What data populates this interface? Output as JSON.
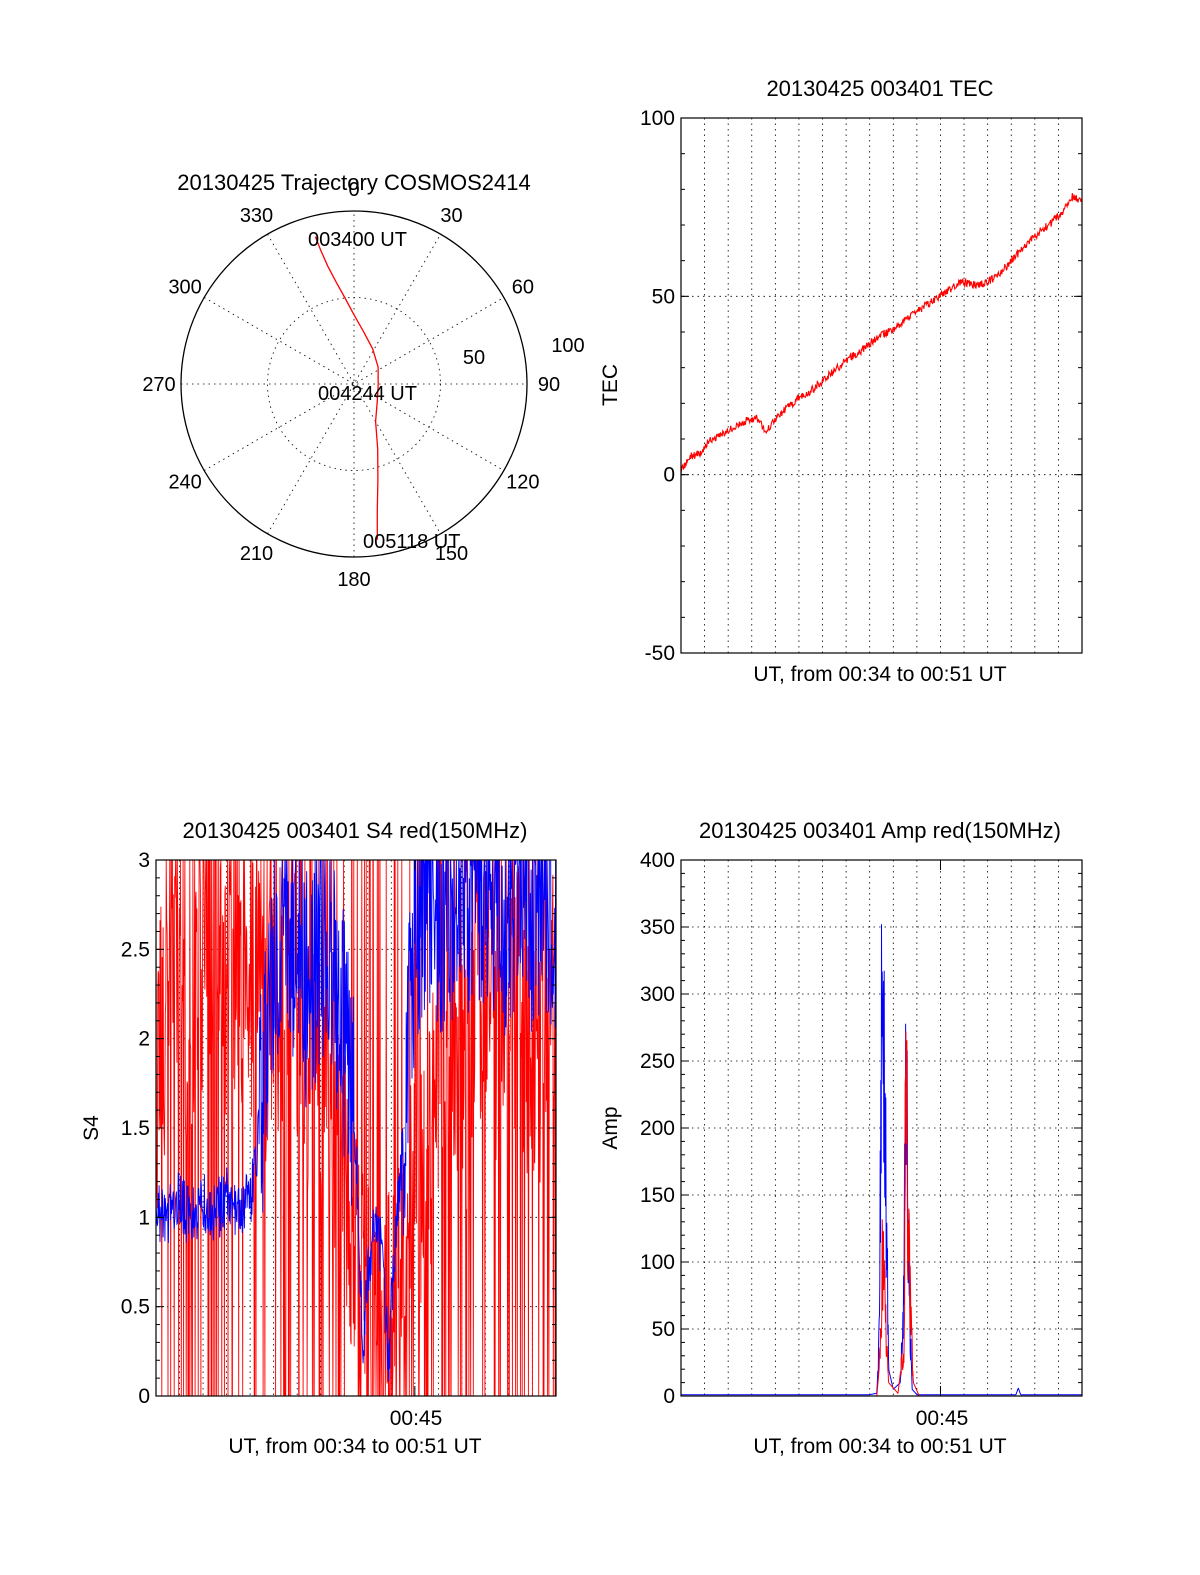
{
  "colors": {
    "red": "#ff0000",
    "blue": "#0000ff",
    "axis": "#000000"
  },
  "chart_data": [
    {
      "id": "trajectory",
      "type": "scatter",
      "subtype": "polar",
      "title": "20130425 Trajectory COSMOS2414",
      "azimuth_labels": [
        "0",
        "30",
        "60",
        "90",
        "120",
        "150",
        "180",
        "210",
        "240",
        "270",
        "300",
        "330"
      ],
      "radial_labels": [
        "50",
        "100"
      ],
      "radial_range": [
        0,
        100
      ],
      "annotations": [
        "003400 UT",
        "004244 UT",
        "005118 UT"
      ],
      "series": [
        {
          "color": "#ff0000",
          "note": "ground track as (azimuth deg, radius 0-100 = 90-elevation)",
          "points": [
            [
              -14.7,
              88
            ],
            [
              -14.0,
              80
            ],
            [
              -12.6,
              70
            ],
            [
              -10.0,
              60
            ],
            [
              -6.0,
              50
            ],
            [
              0,
              40
            ],
            [
              10,
              31
            ],
            [
              28,
              23
            ],
            [
              55,
              17
            ],
            [
              92,
              14
            ],
            [
              128,
              17
            ],
            [
              150,
              25
            ],
            [
              160,
              40
            ],
            [
              166,
              57
            ],
            [
              169.5,
              74
            ],
            [
              171.5,
              91
            ]
          ]
        }
      ]
    },
    {
      "id": "tec",
      "type": "line",
      "title": "20130425 003401 TEC",
      "xlabel": "UT, from 00:34 to 00:51 UT",
      "ylabel": "TEC",
      "ylim": [
        -50,
        100
      ],
      "yticks": [
        "100",
        "50",
        "0",
        "-50"
      ],
      "xlim_minutes": [
        34,
        51
      ],
      "grid": true,
      "series": [
        {
          "color": "#ff0000",
          "x": [
            34.0,
            34.4,
            34.8,
            35.3,
            35.7,
            36.2,
            36.7,
            37.2,
            37.6,
            38.2,
            38.9,
            39.6,
            40.3,
            41.0,
            41.7,
            42.4,
            43.1,
            43.8,
            44.5,
            45.2,
            45.9,
            46.6,
            47.3,
            48.0,
            48.7,
            49.4,
            50.1,
            50.6,
            51.0
          ],
          "y": [
            1,
            5,
            6,
            10,
            11,
            13,
            15,
            16,
            12,
            17,
            21,
            24,
            28,
            32,
            35,
            39,
            41,
            45,
            48,
            51,
            54,
            53,
            55,
            60,
            65,
            69,
            73,
            78,
            77
          ]
        }
      ]
    },
    {
      "id": "s4",
      "type": "line",
      "title": "20130425 003401 S4 red(150MHz)",
      "xlabel": "UT, from 00:34 to 00:51 UT",
      "ylabel": "S4",
      "ylim": [
        0,
        3
      ],
      "yticks": [
        "3",
        "2.5",
        "2",
        "1.5",
        "1",
        "0.5",
        "0"
      ],
      "xlim_minutes": [
        34,
        51
      ],
      "xtick_label": "00:45",
      "xtick_value": 45,
      "grid": true,
      "series": [
        {
          "color": "#ff0000",
          "x": [
            34.0,
            34.7,
            35.4,
            36.1,
            36.8,
            37.5,
            38.2,
            38.9,
            39.6,
            40.3,
            41.0,
            41.8,
            42.5,
            43.1,
            43.8,
            44.4,
            45.1,
            45.8,
            46.5,
            47.2,
            47.9,
            48.6,
            49.3,
            50.0,
            50.7,
            51.0
          ],
          "y": [
            1.8,
            2.4,
            2.1,
            2.6,
            2.3,
            2.5,
            2.2,
            2.0,
            2.4,
            1.9,
            1.7,
            1.3,
            0.8,
            0.3,
            0.4,
            0.6,
            1.2,
            1.6,
            2.1,
            1.8,
            2.4,
            2.0,
            2.3,
            1.7,
            2.2,
            2.4
          ]
        },
        {
          "color": "#0000ff",
          "x": [
            34.0,
            34.5,
            35.0,
            35.5,
            36.0,
            36.5,
            37.0,
            37.5,
            38.0,
            38.5,
            39.0,
            39.5,
            40.0,
            40.5,
            41.0,
            41.5,
            42.0,
            42.5,
            42.8,
            43.0,
            43.3,
            43.6,
            43.9,
            44.1,
            44.4,
            44.7,
            45.0,
            45.5,
            46.0,
            46.5,
            47.0,
            47.5,
            48.0,
            48.5,
            49.0,
            49.5,
            50.0,
            50.5,
            51.0
          ],
          "y": [
            1.05,
            1.0,
            1.1,
            0.98,
            1.08,
            1.02,
            1.12,
            1.0,
            1.1,
            1.6,
            2.4,
            2.7,
            2.5,
            2.2,
            2.6,
            2.3,
            2.0,
            1.4,
            0.2,
            0.7,
            1.0,
            0.8,
            0.15,
            0.8,
            1.2,
            2.0,
            2.6,
            2.9,
            2.7,
            2.8,
            2.6,
            2.9,
            2.7,
            2.8,
            2.6,
            2.9,
            2.7,
            2.8,
            2.7
          ]
        }
      ]
    },
    {
      "id": "amp",
      "type": "line",
      "title": "20130425 003401 Amp red(150MHz)",
      "xlabel": "UT, from 00:34 to 00:51 UT",
      "ylabel": "Amp",
      "ylim": [
        0,
        400
      ],
      "yticks": [
        "400",
        "350",
        "300",
        "250",
        "200",
        "150",
        "100",
        "50",
        "0"
      ],
      "xlim_minutes": [
        34,
        51
      ],
      "xtick_label": "00:45",
      "xtick_value": 45,
      "grid": true,
      "series": [
        {
          "color": "#0000ff",
          "x": [
            34.0,
            38.0,
            42.0,
            42.3,
            42.4,
            42.5,
            42.55,
            42.6,
            42.7,
            42.8,
            43.0,
            43.3,
            43.45,
            43.5,
            43.6,
            43.7,
            43.8,
            44.0,
            46.0,
            48.2,
            48.3,
            48.4,
            51.0
          ],
          "y": [
            1,
            1,
            1,
            2,
            40,
            260,
            290,
            230,
            150,
            20,
            5,
            10,
            80,
            200,
            180,
            60,
            5,
            1,
            1,
            1,
            6,
            1,
            1
          ]
        },
        {
          "color": "#ff0000",
          "x": [
            34.0,
            42.3,
            42.45,
            42.55,
            42.65,
            42.8,
            43.2,
            43.45,
            43.55,
            43.6,
            43.7,
            43.85,
            44.1,
            51.0
          ],
          "y": [
            0,
            0,
            30,
            110,
            70,
            10,
            2,
            40,
            260,
            160,
            80,
            10,
            0,
            0
          ]
        }
      ]
    }
  ]
}
